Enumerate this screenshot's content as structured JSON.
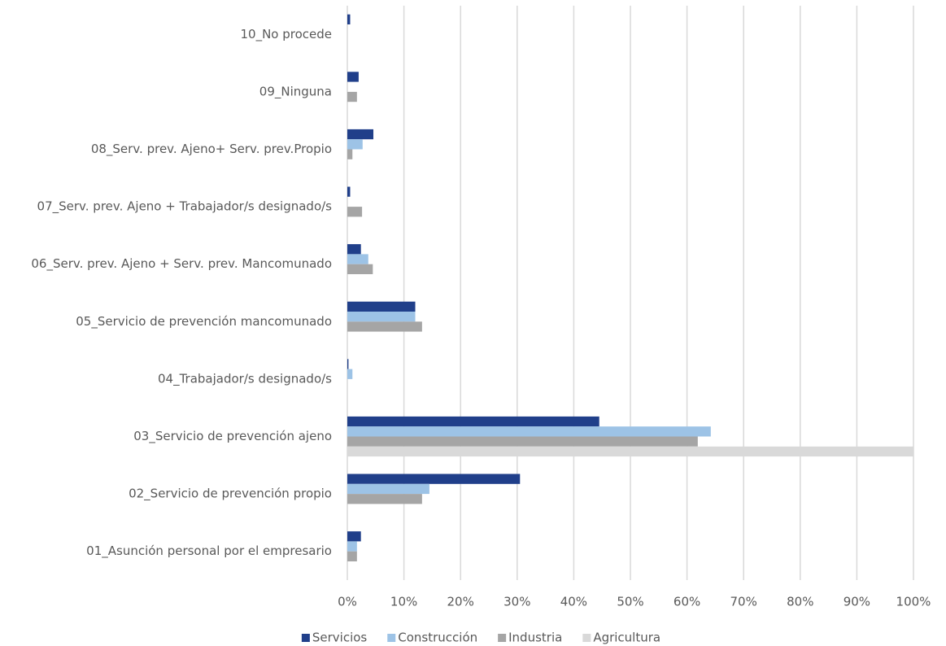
{
  "chart_data": {
    "type": "hbar",
    "categories": [
      "10_No procede",
      "09_Ninguna",
      "08_Serv. prev. Ajeno+ Serv. prev.Propio",
      "07_Serv. prev. Ajeno + Trabajador/s designado/s",
      "06_Serv. prev. Ajeno + Serv. prev. Mancomunado",
      "05_Servicio de prevención mancomunado",
      "04_Trabajador/s designado/s",
      "03_Servicio de prevención ajeno",
      "02_Servicio de prevención propio",
      "01_Asunción personal por el empresario"
    ],
    "series": [
      {
        "name": "Servicios",
        "color": "#203f8a",
        "values": [
          0.5,
          2.0,
          4.6,
          0.5,
          2.4,
          12.0,
          0.2,
          44.5,
          30.5,
          2.4
        ]
      },
      {
        "name": "Construcción",
        "color": "#9dc3e6",
        "values": [
          0,
          0,
          2.7,
          0,
          3.7,
          12.0,
          0.9,
          64.2,
          14.5,
          1.7
        ]
      },
      {
        "name": "Industria",
        "color": "#a5a5a5",
        "values": [
          0,
          1.7,
          0.9,
          2.6,
          4.5,
          13.2,
          0,
          61.9,
          13.2,
          1.7
        ]
      },
      {
        "name": "Agricultura",
        "color": "#d9d9d9",
        "values": [
          0,
          0,
          0,
          0,
          0,
          0,
          0,
          100,
          0,
          0
        ]
      }
    ],
    "xlim": [
      0,
      100
    ],
    "xticks": [
      {
        "value": 0,
        "label": "0%"
      },
      {
        "value": 10,
        "label": "10%"
      },
      {
        "value": 20,
        "label": "20%"
      },
      {
        "value": 30,
        "label": "30%"
      },
      {
        "value": 40,
        "label": "40%"
      },
      {
        "value": 50,
        "label": "50%"
      },
      {
        "value": 60,
        "label": "60%"
      },
      {
        "value": 70,
        "label": "70%"
      },
      {
        "value": 80,
        "label": "80%"
      },
      {
        "value": 90,
        "label": "90%"
      },
      {
        "value": 100,
        "label": "100%"
      }
    ],
    "grid": true,
    "legend": "bottom"
  }
}
